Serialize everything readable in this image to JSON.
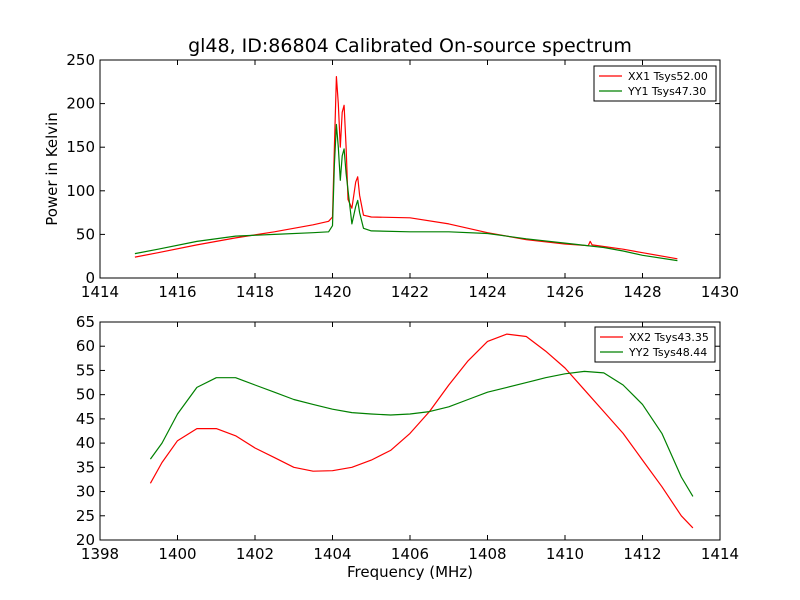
{
  "title": "gl48, ID:86804 Calibrated On-source spectrum",
  "chart_data": [
    {
      "type": "line",
      "title": "gl48, ID:86804 Calibrated On-source spectrum",
      "xlabel": "",
      "ylabel": "Power in Kelvin",
      "xlim": [
        1414,
        1430
      ],
      "ylim": [
        0,
        250
      ],
      "xticks": [
        "1414",
        "1416",
        "1418",
        "1420",
        "1422",
        "1424",
        "1426",
        "1428",
        "1430"
      ],
      "yticks": [
        "0",
        "50",
        "100",
        "150",
        "200",
        "250"
      ],
      "legend": "top-right",
      "grid": false,
      "series": [
        {
          "name": "XX1 Tsys52.00",
          "color": "#ff0000",
          "points": [
            [
              1414.9,
              24
            ],
            [
              1415.5,
              29
            ],
            [
              1416.5,
              38
            ],
            [
              1417.5,
              46
            ],
            [
              1418.5,
              53
            ],
            [
              1419.5,
              61
            ],
            [
              1419.9,
              65
            ],
            [
              1420.0,
              70
            ],
            [
              1420.05,
              150
            ],
            [
              1420.1,
              231
            ],
            [
              1420.15,
              200
            ],
            [
              1420.2,
              150
            ],
            [
              1420.25,
              190
            ],
            [
              1420.3,
              198
            ],
            [
              1420.35,
              150
            ],
            [
              1420.4,
              90
            ],
            [
              1420.5,
              80
            ],
            [
              1420.6,
              110
            ],
            [
              1420.65,
              116
            ],
            [
              1420.7,
              95
            ],
            [
              1420.8,
              72
            ],
            [
              1421.0,
              70
            ],
            [
              1422.0,
              69
            ],
            [
              1423.0,
              62
            ],
            [
              1424.0,
              52
            ],
            [
              1425.0,
              44
            ],
            [
              1426.0,
              39
            ],
            [
              1426.6,
              37
            ],
            [
              1426.65,
              42
            ],
            [
              1426.7,
              38
            ],
            [
              1427.5,
              33
            ],
            [
              1428.0,
              29
            ],
            [
              1428.9,
              22
            ]
          ]
        },
        {
          "name": "YY1 Tsys47.30",
          "color": "#008000",
          "points": [
            [
              1414.9,
              28
            ],
            [
              1415.5,
              33
            ],
            [
              1416.5,
              42
            ],
            [
              1417.5,
              48
            ],
            [
              1418.5,
              50
            ],
            [
              1419.5,
              52
            ],
            [
              1419.9,
              53
            ],
            [
              1420.0,
              60
            ],
            [
              1420.05,
              130
            ],
            [
              1420.1,
              176
            ],
            [
              1420.15,
              150
            ],
            [
              1420.2,
              112
            ],
            [
              1420.25,
              140
            ],
            [
              1420.3,
              148
            ],
            [
              1420.35,
              120
            ],
            [
              1420.5,
              62
            ],
            [
              1420.6,
              82
            ],
            [
              1420.65,
              89
            ],
            [
              1420.7,
              75
            ],
            [
              1420.8,
              57
            ],
            [
              1421.0,
              54
            ],
            [
              1422.0,
              53
            ],
            [
              1423.0,
              53
            ],
            [
              1424.0,
              51
            ],
            [
              1425.0,
              45
            ],
            [
              1426.0,
              40
            ],
            [
              1427.0,
              35
            ],
            [
              1427.5,
              31
            ],
            [
              1428.0,
              26
            ],
            [
              1428.9,
              20
            ]
          ]
        }
      ]
    },
    {
      "type": "line",
      "title": "",
      "xlabel": "Frequency (MHz)",
      "ylabel": "",
      "xlim": [
        1398,
        1414
      ],
      "ylim": [
        20,
        65
      ],
      "xticks": [
        "1398",
        "1400",
        "1402",
        "1404",
        "1406",
        "1408",
        "1410",
        "1412",
        "1414"
      ],
      "yticks": [
        "20",
        "25",
        "30",
        "35",
        "40",
        "45",
        "50",
        "55",
        "60",
        "65"
      ],
      "legend": "top-right",
      "grid": false,
      "series": [
        {
          "name": "XX2 Tsys43.35",
          "color": "#ff0000",
          "points": [
            [
              1399.3,
              31.7
            ],
            [
              1399.6,
              36
            ],
            [
              1400.0,
              40.5
            ],
            [
              1400.5,
              43
            ],
            [
              1401.0,
              43
            ],
            [
              1401.5,
              41.5
            ],
            [
              1402.0,
              39
            ],
            [
              1402.5,
              37
            ],
            [
              1403.0,
              35
            ],
            [
              1403.5,
              34.2
            ],
            [
              1404.0,
              34.3
            ],
            [
              1404.5,
              35
            ],
            [
              1405.0,
              36.5
            ],
            [
              1405.5,
              38.5
            ],
            [
              1406.0,
              42
            ],
            [
              1406.5,
              46.5
            ],
            [
              1407.0,
              52
            ],
            [
              1407.5,
              57
            ],
            [
              1408.0,
              61
            ],
            [
              1408.5,
              62.5
            ],
            [
              1409.0,
              62
            ],
            [
              1409.5,
              59
            ],
            [
              1410.0,
              55.5
            ],
            [
              1410.5,
              51
            ],
            [
              1411.0,
              46.5
            ],
            [
              1411.5,
              42
            ],
            [
              1412.0,
              36.5
            ],
            [
              1412.5,
              31
            ],
            [
              1413.0,
              25
            ],
            [
              1413.3,
              22.5
            ]
          ]
        },
        {
          "name": "YY2 Tsys48.44",
          "color": "#008000",
          "points": [
            [
              1399.3,
              36.7
            ],
            [
              1399.6,
              40
            ],
            [
              1400.0,
              46
            ],
            [
              1400.5,
              51.5
            ],
            [
              1401.0,
              53.5
            ],
            [
              1401.5,
              53.5
            ],
            [
              1402.0,
              52
            ],
            [
              1402.5,
              50.5
            ],
            [
              1403.0,
              49
            ],
            [
              1403.5,
              48
            ],
            [
              1404.0,
              47
            ],
            [
              1404.5,
              46.3
            ],
            [
              1405.0,
              46
            ],
            [
              1405.5,
              45.8
            ],
            [
              1406.0,
              46
            ],
            [
              1406.5,
              46.5
            ],
            [
              1407.0,
              47.5
            ],
            [
              1407.5,
              49
            ],
            [
              1408.0,
              50.5
            ],
            [
              1408.5,
              51.5
            ],
            [
              1409.0,
              52.5
            ],
            [
              1409.5,
              53.5
            ],
            [
              1410.0,
              54.3
            ],
            [
              1410.5,
              54.8
            ],
            [
              1411.0,
              54.5
            ],
            [
              1411.5,
              52
            ],
            [
              1412.0,
              48
            ],
            [
              1412.5,
              42
            ],
            [
              1413.0,
              33
            ],
            [
              1413.3,
              29
            ]
          ]
        }
      ]
    }
  ]
}
